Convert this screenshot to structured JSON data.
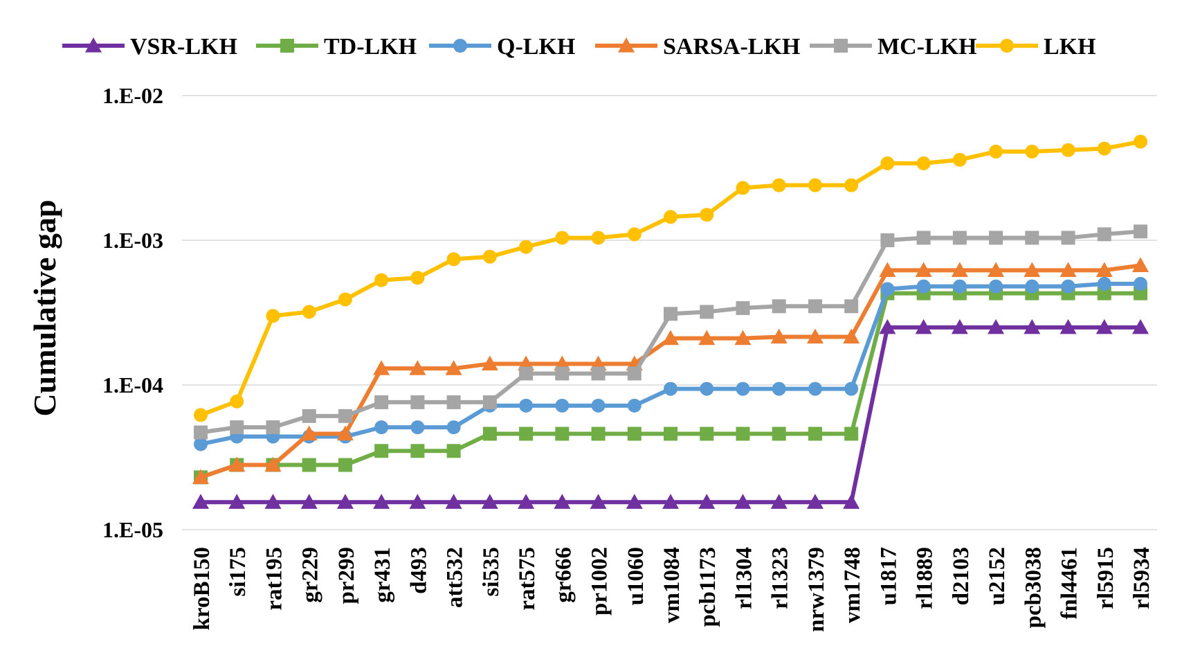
{
  "chart_data": {
    "type": "line",
    "title": "",
    "xlabel": "",
    "ylabel": "Cumulative gap",
    "yscale": "log",
    "ylim": [
      1e-05,
      0.01
    ],
    "y_ticks": [
      {
        "value": 0.01,
        "label": "1.E-02"
      },
      {
        "value": 0.001,
        "label": "1.E-03"
      },
      {
        "value": 0.0001,
        "label": "1.E-04"
      },
      {
        "value": 1e-05,
        "label": "1.E-05"
      }
    ],
    "grid": true,
    "legend_position": "top",
    "categories": [
      "kroB150",
      "si175",
      "rat195",
      "gr229",
      "pr299",
      "gr431",
      "d493",
      "att532",
      "si535",
      "rat575",
      "gr666",
      "pr1002",
      "u1060",
      "vm1084",
      "pcb1173",
      "rl1304",
      "rl1323",
      "nrw1379",
      "vm1748",
      "u1817",
      "rl1889",
      "d2103",
      "u2152",
      "pcb3038",
      "fnl4461",
      "rl5915",
      "rl5934"
    ],
    "series": [
      {
        "name": "VSR-LKH",
        "color": "#7030A0",
        "marker": "triangle",
        "values": [
          1.55e-05,
          1.55e-05,
          1.55e-05,
          1.55e-05,
          1.55e-05,
          1.55e-05,
          1.55e-05,
          1.55e-05,
          1.55e-05,
          1.55e-05,
          1.55e-05,
          1.55e-05,
          1.55e-05,
          1.55e-05,
          1.55e-05,
          1.55e-05,
          1.55e-05,
          1.55e-05,
          1.55e-05,
          0.00025,
          0.00025,
          0.00025,
          0.00025,
          0.00025,
          0.00025,
          0.00025,
          0.00025
        ]
      },
      {
        "name": "TD-LKH",
        "color": "#70AD47",
        "marker": "square",
        "values": [
          2.3e-05,
          2.8e-05,
          2.8e-05,
          2.8e-05,
          2.8e-05,
          3.5e-05,
          3.5e-05,
          3.5e-05,
          4.6e-05,
          4.6e-05,
          4.6e-05,
          4.6e-05,
          4.6e-05,
          4.6e-05,
          4.6e-05,
          4.6e-05,
          4.6e-05,
          4.6e-05,
          4.6e-05,
          0.00043,
          0.00043,
          0.00043,
          0.00043,
          0.00043,
          0.00043,
          0.00043,
          0.00043
        ]
      },
      {
        "name": "Q-LKH",
        "color": "#5B9BD5",
        "marker": "circle",
        "values": [
          3.9e-05,
          4.4e-05,
          4.4e-05,
          4.4e-05,
          4.4e-05,
          5.1e-05,
          5.1e-05,
          5.1e-05,
          7.2e-05,
          7.2e-05,
          7.2e-05,
          7.2e-05,
          7.2e-05,
          9.4e-05,
          9.4e-05,
          9.4e-05,
          9.4e-05,
          9.4e-05,
          9.4e-05,
          0.00046,
          0.00048,
          0.00048,
          0.00048,
          0.00048,
          0.00048,
          0.0005,
          0.0005
        ]
      },
      {
        "name": "SARSA-LKH",
        "color": "#ED7D31",
        "marker": "triangle",
        "values": [
          2.3e-05,
          2.8e-05,
          2.8e-05,
          4.6e-05,
          4.6e-05,
          0.00013,
          0.00013,
          0.00013,
          0.00014,
          0.00014,
          0.00014,
          0.00014,
          0.00014,
          0.00021,
          0.00021,
          0.00021,
          0.000215,
          0.000215,
          0.000215,
          0.00062,
          0.00062,
          0.00062,
          0.00062,
          0.00062,
          0.00062,
          0.00062,
          0.00067
        ]
      },
      {
        "name": "MC-LKH",
        "color": "#A5A5A5",
        "marker": "square",
        "values": [
          4.7e-05,
          5.1e-05,
          5.1e-05,
          6.1e-05,
          6.1e-05,
          7.6e-05,
          7.6e-05,
          7.6e-05,
          7.6e-05,
          0.00012,
          0.00012,
          0.00012,
          0.00012,
          0.00031,
          0.00032,
          0.00034,
          0.00035,
          0.00035,
          0.00035,
          0.001,
          0.00104,
          0.00104,
          0.00104,
          0.00104,
          0.00104,
          0.0011,
          0.00115
        ]
      },
      {
        "name": "LKH",
        "color": "#FFC000",
        "marker": "circle",
        "values": [
          6.2e-05,
          7.7e-05,
          0.0003,
          0.00032,
          0.00039,
          0.00053,
          0.00055,
          0.00074,
          0.00077,
          0.0009,
          0.00104,
          0.00104,
          0.0011,
          0.00145,
          0.0015,
          0.0023,
          0.0024,
          0.0024,
          0.0024,
          0.0034,
          0.0034,
          0.0036,
          0.0041,
          0.0041,
          0.0042,
          0.0043,
          0.0048
        ]
      }
    ]
  }
}
